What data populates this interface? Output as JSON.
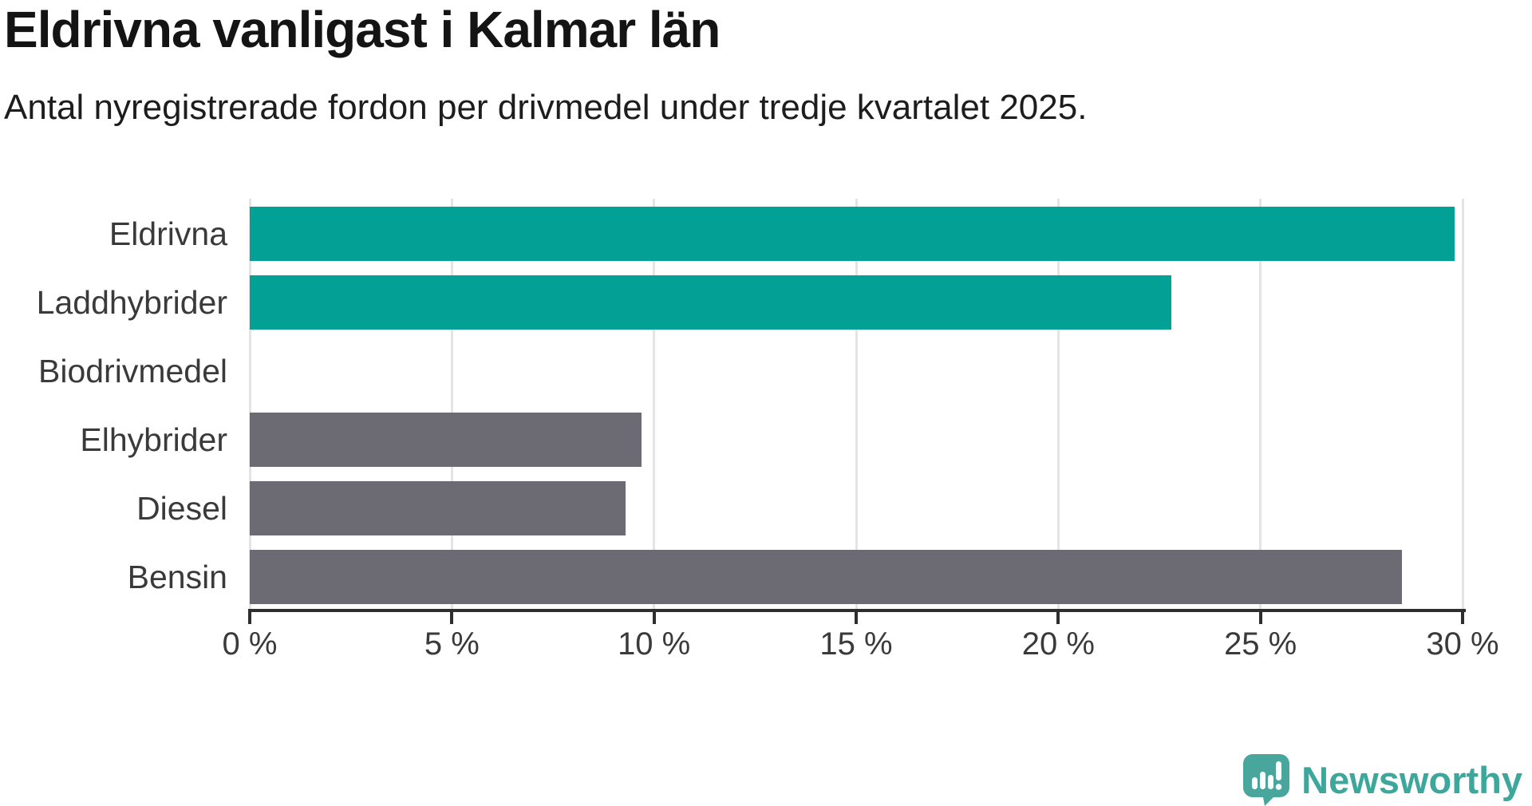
{
  "header": {
    "title": "Eldrivna vanligast i Kalmar län",
    "subtitle": "Antal nyregistrerade fordon per drivmedel under tredje kvartalet 2025."
  },
  "chart_data": {
    "type": "bar",
    "orientation": "horizontal",
    "title": "Eldrivna vanligast i Kalmar län",
    "subtitle": "Antal nyregistrerade fordon per drivmedel under tredje kvartalet 2025.",
    "categories": [
      "Eldrivna",
      "Laddhybrider",
      "Biodrivmedel",
      "Elhybrider",
      "Diesel",
      "Bensin"
    ],
    "values": [
      29.8,
      22.8,
      0,
      9.7,
      9.3,
      28.5
    ],
    "unit": "%",
    "bar_colors": [
      "#03a096",
      "#03a096",
      "#6c6b73",
      "#6c6b73",
      "#6c6b73",
      "#6c6b73"
    ],
    "highlight_color": "#03a096",
    "default_color": "#6c6b73",
    "xlim": [
      0,
      30
    ],
    "x_tick_values": [
      0,
      5,
      10,
      15,
      20,
      25,
      30
    ],
    "x_tick_labels": [
      "0 %",
      "5 %",
      "10 %",
      "15 %",
      "20 %",
      "25 %",
      "30 %"
    ],
    "xlabel": "",
    "ylabel": "",
    "grid": true,
    "legend": false
  },
  "footer": {
    "brand": "Newsworthy",
    "brand_color": "#3ea79c",
    "logo_icon": "newsworthy-speech-bubble-chart-icon"
  }
}
